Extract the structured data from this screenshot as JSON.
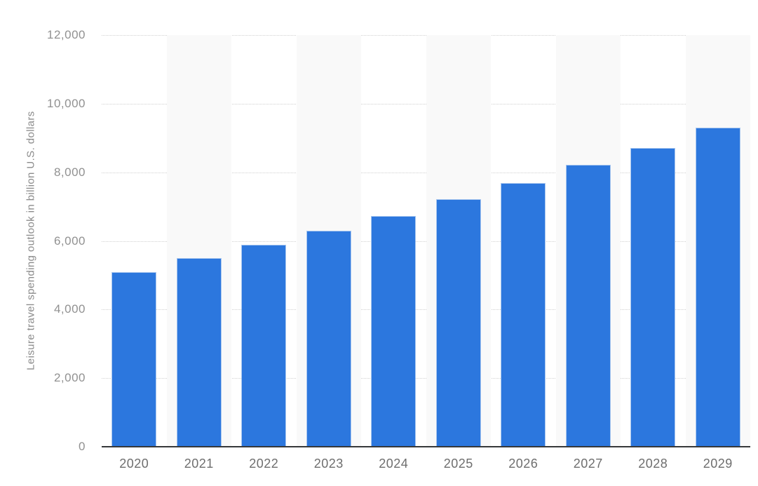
{
  "chart_data": {
    "type": "bar",
    "title": "",
    "xlabel": "",
    "ylabel": "Leisure travel spending outlook in billion U.S. dollars",
    "categories": [
      "2020",
      "2021",
      "2022",
      "2023",
      "2024",
      "2025",
      "2026",
      "2027",
      "2028",
      "2029"
    ],
    "values": [
      5100,
      5500,
      5890,
      6300,
      6730,
      7220,
      7690,
      8220,
      8710,
      9300
    ],
    "ylim": [
      0,
      12000
    ],
    "yticks": [
      0,
      2000,
      4000,
      6000,
      8000,
      10000,
      12000
    ],
    "ytick_labels": [
      "0",
      "2,000",
      "4,000",
      "6,000",
      "8,000",
      "10,000",
      "12,000"
    ],
    "grid": "horizontal-dotted",
    "legend_position": "none",
    "colors": {
      "bar": "#2c77de",
      "bar_edge": "#a9c7ef",
      "band": "#f9f9f9",
      "gridline": "#d0d0d0",
      "axis_line": "#36383a",
      "ytick_text": "#919191",
      "xtick_text": "#6e6e6e",
      "ylabel_text": "#8b8b8b"
    }
  }
}
